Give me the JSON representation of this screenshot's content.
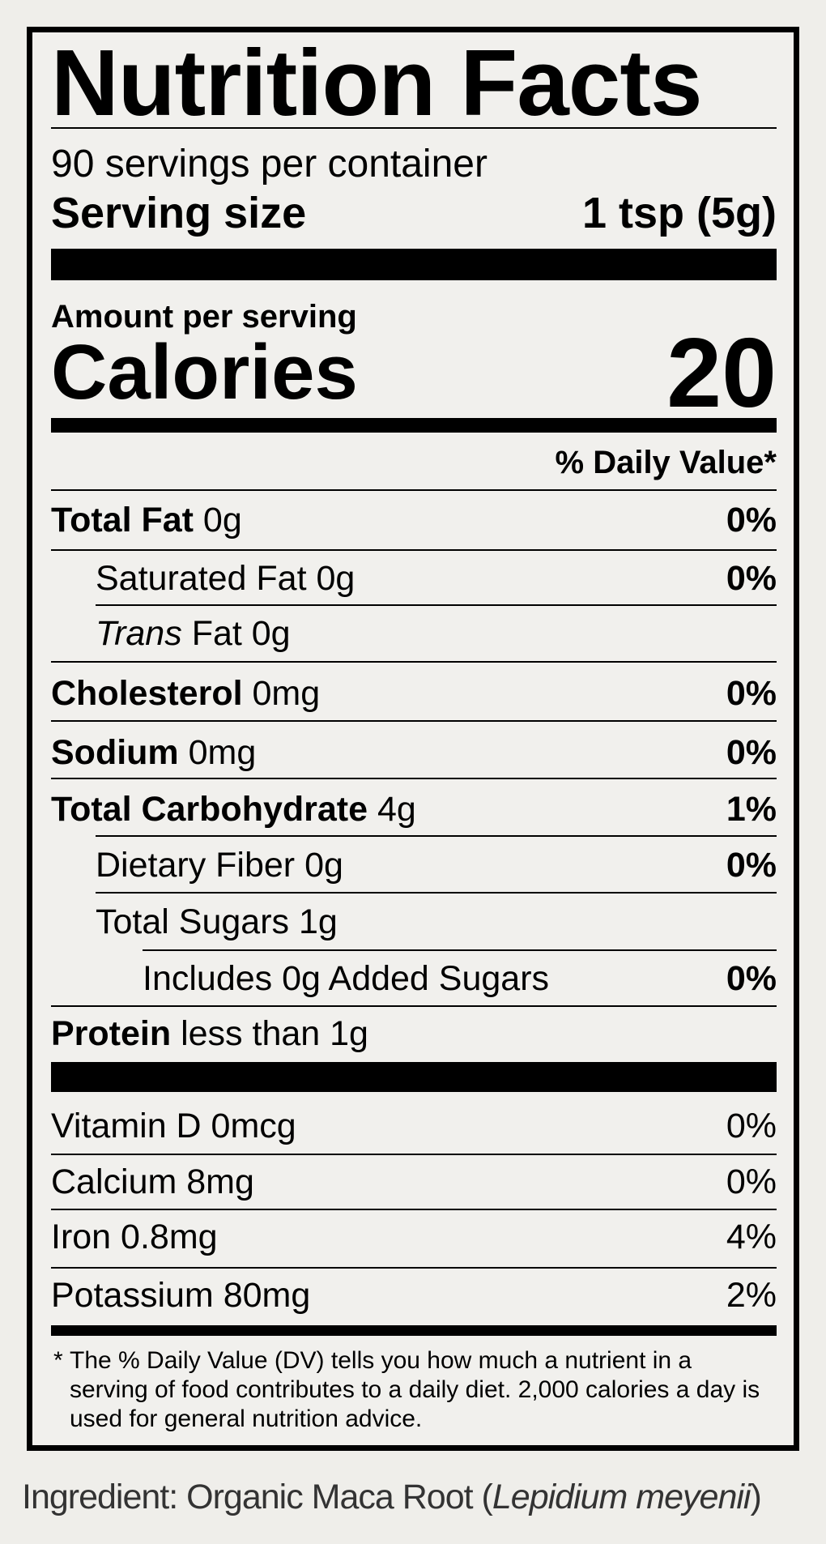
{
  "title": "Nutrition Facts",
  "servings": "90 servings per container",
  "serving_size": {
    "label": "Serving size",
    "value": "1 tsp (5g)"
  },
  "amount_per_serving": "Amount per serving",
  "calories": {
    "label": "Calories",
    "value": 20
  },
  "daily_value_header": "% Daily Value*",
  "nutrients": [
    {
      "name": "Total Fat",
      "amount": "0g",
      "dv": "0%"
    },
    {
      "name": "Saturated Fat 0g",
      "dv": "0%"
    },
    {
      "prefix": "Trans",
      "name": "Fat 0g"
    },
    {
      "name": "Cholesterol",
      "amount": "0mg",
      "dv": "0%"
    },
    {
      "name": "Sodium",
      "amount": "0mg",
      "dv": "0%"
    },
    {
      "name": "Total Carbohydrate",
      "amount": "4g",
      "dv": "1%"
    },
    {
      "name": "Dietary Fiber 0g",
      "dv": "0%"
    },
    {
      "name": "Total Sugars 1g"
    },
    {
      "name": "Includes 0g Added Sugars",
      "dv": "0%"
    },
    {
      "name": "Protein",
      "amount": "less than 1g"
    }
  ],
  "vitamins": [
    {
      "name": "Vitamin D 0mcg",
      "dv": "0%"
    },
    {
      "name": "Calcium 8mg",
      "dv": "0%"
    },
    {
      "name": "Iron 0.8mg",
      "dv": "4%"
    },
    {
      "name": "Potassium 80mg",
      "dv": "2%"
    }
  ],
  "footnote": {
    "marker": "*",
    "text": "The % Daily Value (DV) tells you how much a nutrient in a serving of food contributes to a daily diet. 2,000 calories a day is used for general nutrition advice."
  },
  "ingredient": {
    "prefix": "Ingredient: Organic Maca Root (",
    "scientific": "Lepidium meyenii",
    "suffix": ")"
  }
}
